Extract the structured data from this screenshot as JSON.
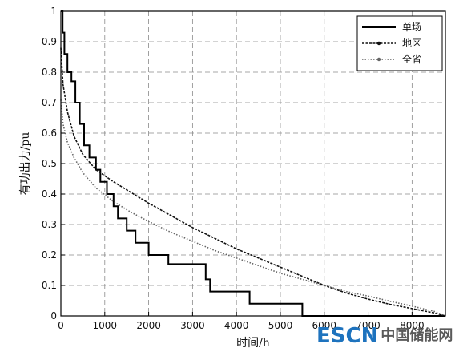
{
  "chart_data": {
    "type": "line",
    "title": "",
    "xlabel": "时间/h",
    "ylabel": "有功出力/pu",
    "xlim": [
      0,
      8760
    ],
    "ylim": [
      0,
      1
    ],
    "xticks": [
      0,
      1000,
      2000,
      3000,
      4000,
      5000,
      6000,
      7000,
      8000
    ],
    "yticks": [
      0,
      0.1,
      0.2,
      0.3,
      0.4,
      0.5,
      0.6,
      0.7,
      0.8,
      0.9,
      1
    ],
    "xtick_labels": [
      "0",
      "1000",
      "2000",
      "3000",
      "4000",
      "5000",
      "6000",
      "7000",
      "8000"
    ],
    "ytick_labels": [
      "0",
      "0.1",
      "0.2",
      "0.3",
      "0.4",
      "0.5",
      "0.6",
      "0.7",
      "0.8",
      "0.9",
      "1"
    ],
    "grid": true,
    "legend_position": "top-right",
    "series": [
      {
        "name": "单场",
        "style": "solid",
        "color": "#000000",
        "step": true,
        "x": [
          0,
          40,
          80,
          150,
          240,
          330,
          430,
          530,
          650,
          800,
          900,
          1050,
          1200,
          1300,
          1500,
          1700,
          2000,
          2450,
          3300,
          3400,
          4300,
          5500,
          5500,
          8760
        ],
        "y": [
          1.0,
          0.93,
          0.86,
          0.8,
          0.77,
          0.7,
          0.63,
          0.56,
          0.52,
          0.48,
          0.44,
          0.4,
          0.36,
          0.32,
          0.28,
          0.24,
          0.2,
          0.17,
          0.12,
          0.08,
          0.04,
          0.04,
          0.0,
          0.0
        ]
      },
      {
        "name": "地区",
        "style": "dashed",
        "color": "#111111",
        "step": false,
        "x": [
          0,
          50,
          150,
          300,
          500,
          800,
          1200,
          1600,
          2000,
          2500,
          3000,
          3500,
          4000,
          4500,
          5000,
          5500,
          6000,
          6500,
          7000,
          7500,
          8000,
          8500,
          8760
        ],
        "y": [
          0.88,
          0.76,
          0.67,
          0.59,
          0.53,
          0.48,
          0.44,
          0.405,
          0.37,
          0.33,
          0.29,
          0.255,
          0.22,
          0.19,
          0.16,
          0.13,
          0.1,
          0.075,
          0.055,
          0.038,
          0.024,
          0.01,
          0.0
        ]
      },
      {
        "name": "全省",
        "style": "dotted",
        "color": "#666666",
        "step": false,
        "x": [
          0,
          50,
          150,
          300,
          500,
          800,
          1200,
          1600,
          2000,
          2500,
          3000,
          3500,
          4000,
          4500,
          5000,
          5500,
          6000,
          6500,
          7000,
          7500,
          8000,
          8500,
          8760
        ],
        "y": [
          0.71,
          0.63,
          0.57,
          0.52,
          0.47,
          0.42,
          0.375,
          0.34,
          0.31,
          0.275,
          0.245,
          0.215,
          0.19,
          0.165,
          0.14,
          0.12,
          0.1,
          0.08,
          0.065,
          0.048,
          0.032,
          0.015,
          0.0
        ]
      }
    ]
  },
  "watermark": {
    "brand": "ESCN",
    "name": "中国储能网"
  }
}
